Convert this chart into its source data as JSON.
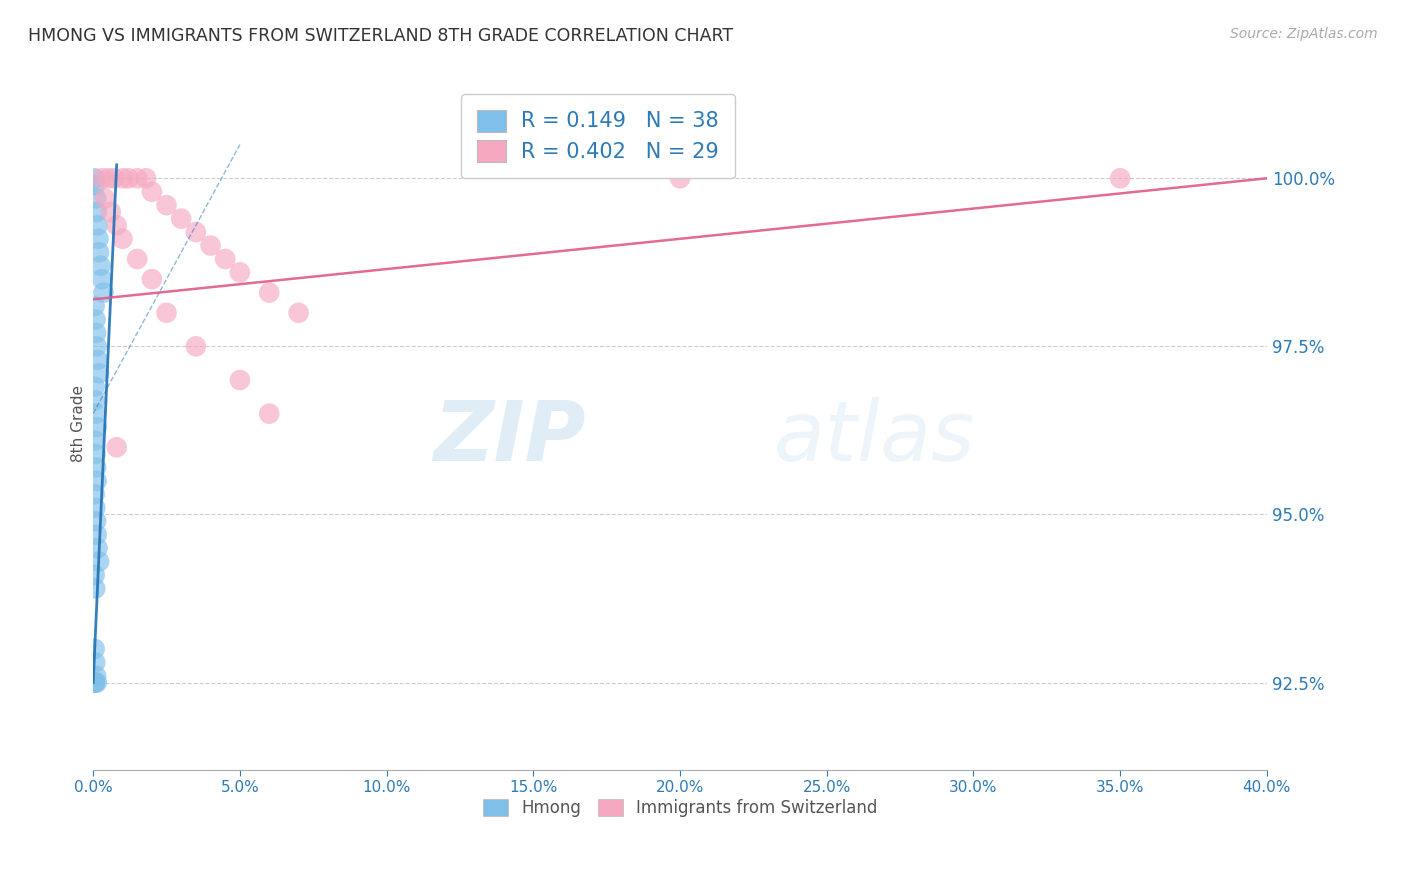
{
  "title": "HMONG VS IMMIGRANTS FROM SWITZERLAND 8TH GRADE CORRELATION CHART",
  "source": "Source: ZipAtlas.com",
  "ylabel": "8th Grade",
  "xlim": [
    0.0,
    40.0
  ],
  "ylim": [
    91.2,
    101.5
  ],
  "yticks": [
    92.5,
    95.0,
    97.5,
    100.0
  ],
  "xticks": [
    0.0,
    5.0,
    10.0,
    15.0,
    20.0,
    25.0,
    30.0,
    35.0,
    40.0
  ],
  "hmong_color": "#7fbfea",
  "swiss_color": "#f5a8c0",
  "hmong_line_color": "#2171b5",
  "swiss_line_color": "#e05a8a",
  "background_color": "#ffffff",
  "watermark_zip": "ZIP",
  "watermark_atlas": "atlas",
  "legend_R_hmong": "0.149",
  "legend_N_hmong": "38",
  "legend_R_swiss": "0.402",
  "legend_N_swiss": "29",
  "hmong_x": [
    0.05,
    0.07,
    0.1,
    0.12,
    0.15,
    0.18,
    0.2,
    0.25,
    0.3,
    0.35,
    0.05,
    0.08,
    0.1,
    0.12,
    0.15,
    0.2,
    0.05,
    0.07,
    0.1,
    0.12,
    0.05,
    0.08,
    0.1,
    0.12,
    0.05,
    0.07,
    0.1,
    0.12,
    0.15,
    0.2,
    0.05,
    0.07,
    0.05,
    0.07,
    0.1,
    0.12,
    0.05,
    0.07
  ],
  "hmong_y": [
    100.0,
    99.9,
    99.7,
    99.5,
    99.3,
    99.1,
    98.9,
    98.7,
    98.5,
    98.3,
    98.1,
    97.9,
    97.7,
    97.5,
    97.3,
    97.1,
    96.9,
    96.7,
    96.5,
    96.3,
    96.1,
    95.9,
    95.7,
    95.5,
    95.3,
    95.1,
    94.9,
    94.7,
    94.5,
    94.3,
    94.1,
    93.9,
    93.0,
    92.8,
    92.6,
    92.5,
    92.5,
    92.5
  ],
  "swiss_x": [
    0.3,
    0.5,
    0.7,
    1.0,
    1.2,
    1.5,
    1.8,
    2.0,
    2.5,
    3.0,
    3.5,
    4.0,
    4.5,
    5.0,
    6.0,
    7.0,
    0.4,
    0.6,
    0.8,
    1.0,
    1.5,
    2.0,
    2.5,
    3.5,
    5.0,
    6.0,
    0.8,
    20.0,
    35.0
  ],
  "swiss_y": [
    100.0,
    100.0,
    100.0,
    100.0,
    100.0,
    100.0,
    100.0,
    99.8,
    99.6,
    99.4,
    99.2,
    99.0,
    98.8,
    98.6,
    98.3,
    98.0,
    99.7,
    99.5,
    99.3,
    99.1,
    98.8,
    98.5,
    98.0,
    97.5,
    97.0,
    96.5,
    96.0,
    100.0,
    100.0
  ],
  "hmong_line_x0": 0.0,
  "hmong_line_y0": 92.5,
  "hmong_line_x1": 0.8,
  "hmong_line_y1": 100.2,
  "swiss_line_x0": 0.0,
  "swiss_line_y0": 98.2,
  "swiss_line_x1": 40.0,
  "swiss_line_y1": 100.0
}
